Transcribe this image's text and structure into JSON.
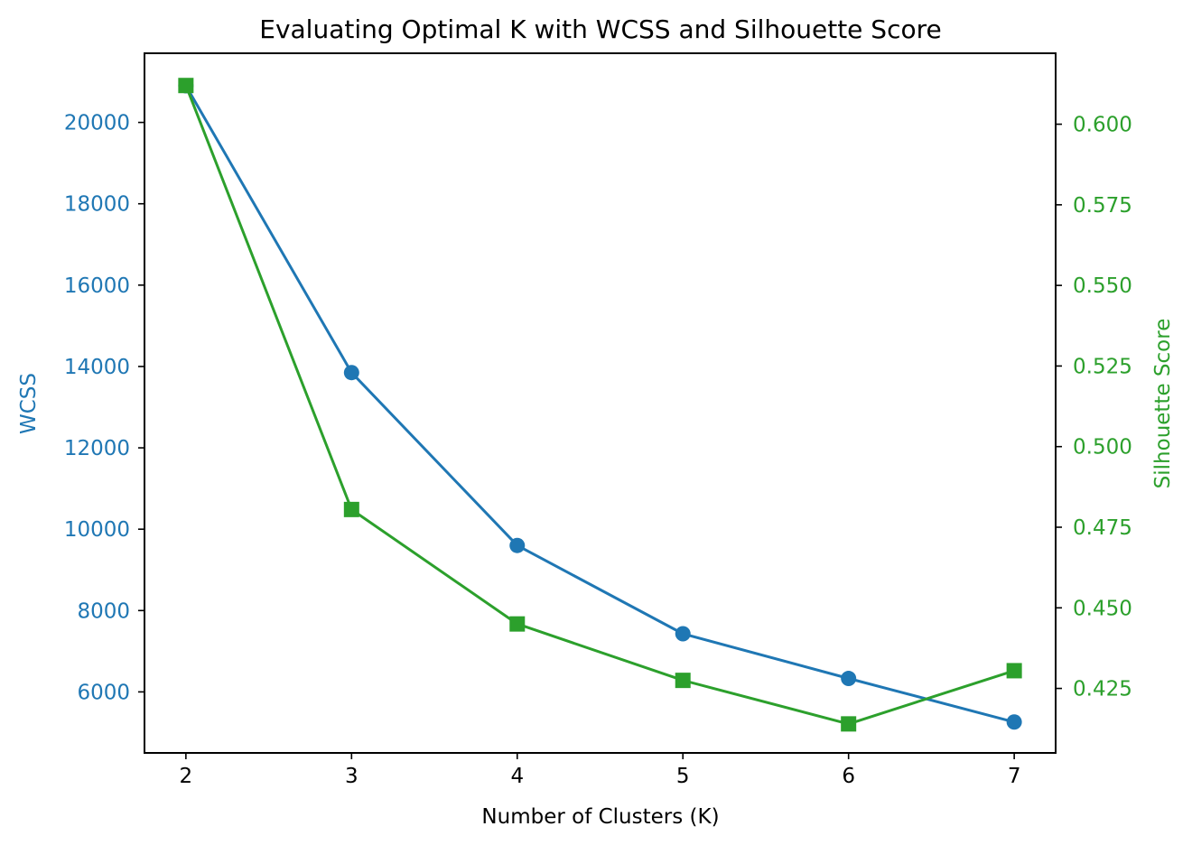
{
  "chart_data": {
    "type": "line",
    "title": "Evaluating Optimal K with WCSS and Silhouette Score",
    "xlabel": "Number of Clusters (K)",
    "x": [
      2,
      3,
      4,
      5,
      6,
      7
    ],
    "x_ticks": [
      "2",
      "3",
      "4",
      "5",
      "6",
      "7"
    ],
    "xlim": [
      1.75,
      7.25
    ],
    "grid": false,
    "legend": "none",
    "y_left": {
      "label": "WCSS",
      "color": "#1f77b4",
      "ylim": [
        4500,
        21700
      ],
      "ticks": [
        6000,
        8000,
        10000,
        12000,
        14000,
        16000,
        18000,
        20000
      ],
      "tick_labels": [
        "6000",
        "8000",
        "10000",
        "12000",
        "14000",
        "16000",
        "18000",
        "20000"
      ]
    },
    "y_right": {
      "label": "Silhouette Score",
      "color": "#2ca02c",
      "ylim": [
        0.405,
        0.622
      ],
      "ticks": [
        0.425,
        0.45,
        0.475,
        0.5,
        0.525,
        0.55,
        0.575,
        0.6
      ],
      "tick_labels": [
        "0.425",
        "0.450",
        "0.475",
        "0.500",
        "0.525",
        "0.550",
        "0.575",
        "0.600"
      ]
    },
    "series": [
      {
        "axis": "left",
        "marker": "circle",
        "color": "#1f77b4",
        "values": [
          20900,
          13850,
          9600,
          7430,
          6330,
          5260
        ]
      },
      {
        "axis": "right",
        "marker": "square",
        "color": "#2ca02c",
        "values": [
          0.612,
          0.4805,
          0.445,
          0.4275,
          0.414,
          0.4305
        ]
      }
    ]
  }
}
